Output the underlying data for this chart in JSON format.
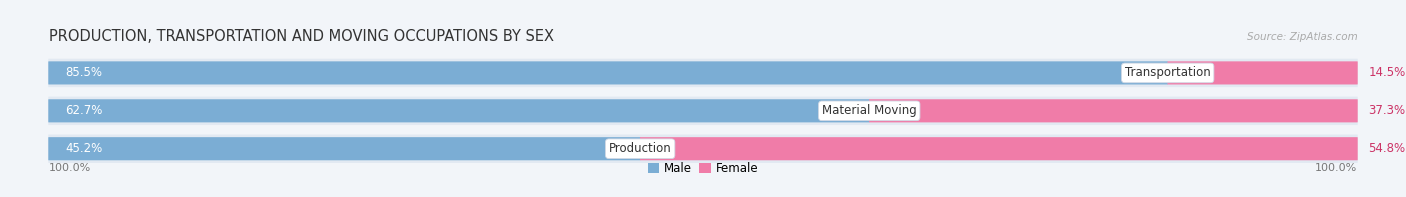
{
  "title": "PRODUCTION, TRANSPORTATION AND MOVING OCCUPATIONS BY SEX",
  "source": "Source: ZipAtlas.com",
  "categories": [
    "Transportation",
    "Material Moving",
    "Production"
  ],
  "male_values": [
    85.5,
    62.7,
    45.2
  ],
  "female_values": [
    14.5,
    37.3,
    54.8
  ],
  "male_color": "#7badd4",
  "female_color": "#f07ca8",
  "row_bg_color": "#e2e9f2",
  "bg_color": "#f2f5f9",
  "label_color_male_inside": "#ffffff",
  "label_color_male_outside": "#555555",
  "label_color_female_inside": "#ffffff",
  "label_color_female_outside": "#cc3366",
  "axis_label_left": "100.0%",
  "axis_label_right": "100.0%",
  "legend_male": "Male",
  "legend_female": "Female",
  "title_fontsize": 10.5,
  "source_fontsize": 7.5,
  "label_fontsize": 8.5,
  "category_fontsize": 8.5,
  "total_width": 100.0
}
